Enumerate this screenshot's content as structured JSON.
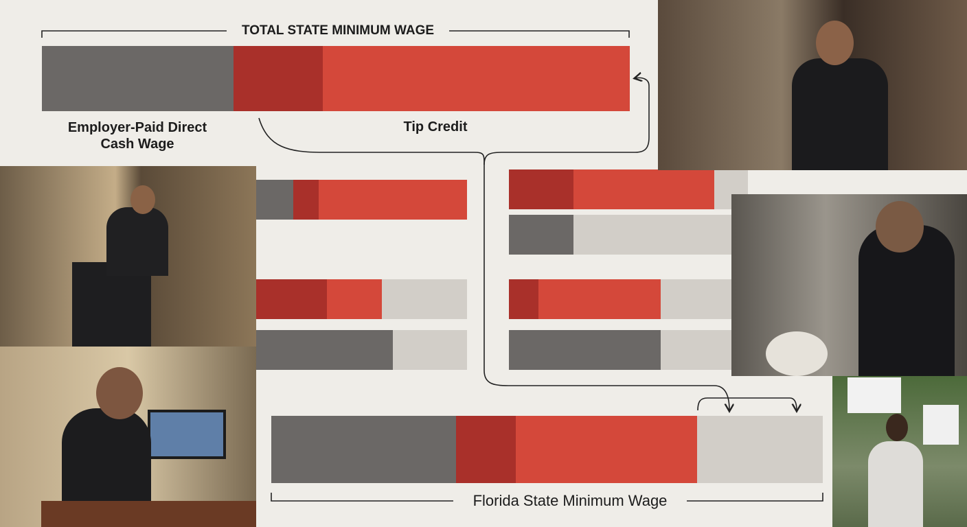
{
  "header": {
    "title": "TOTAL STATE MINIMUM WAGE"
  },
  "labels": {
    "direct_cash_wage": "Employer-Paid Direct Cash Wage",
    "tip_credit": "Tip Credit"
  },
  "footer": {
    "title": "Florida State Minimum Wage"
  }
}
